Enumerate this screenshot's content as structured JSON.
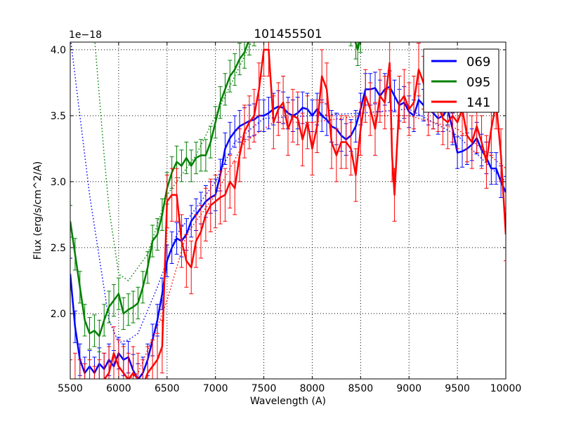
{
  "chart_data": {
    "type": "line",
    "title": "101455501",
    "xlabel": "Wavelength (A)",
    "ylabel": "Flux (erg/s/cm^2/A)",
    "offset_label": "1e−18",
    "xlim": [
      5500,
      10000
    ],
    "ylim": [
      1.505,
      4.058
    ],
    "xticks": [
      5500,
      6000,
      6500,
      7000,
      7500,
      8000,
      8500,
      9000,
      9500,
      10000
    ],
    "yticks": [
      2.0,
      2.5,
      3.0,
      3.5,
      4.0
    ],
    "ytick_labels": [
      "2.0",
      "2.5",
      "3.0",
      "3.5",
      "4.0"
    ],
    "grid": true,
    "legend_position": "top-right",
    "series": [
      {
        "name": "069",
        "color": "#0000ff",
        "err": 0.12,
        "x": [
          5500,
          5550,
          5600,
          5650,
          5700,
          5750,
          5800,
          5850,
          5900,
          5950,
          6000,
          6050,
          6100,
          6150,
          6200,
          6250,
          6300,
          6350,
          6400,
          6450,
          6500,
          6550,
          6600,
          6650,
          6700,
          6750,
          6800,
          6850,
          6900,
          6950,
          7000,
          7050,
          7100,
          7150,
          7200,
          7250,
          7300,
          7350,
          7400,
          7450,
          7500,
          7550,
          7600,
          7650,
          7700,
          7750,
          7800,
          7850,
          7900,
          7950,
          8000,
          8050,
          8100,
          8150,
          8200,
          8250,
          8300,
          8350,
          8400,
          8450,
          8500,
          8550,
          8600,
          8650,
          8700,
          8750,
          8800,
          8850,
          8900,
          8950,
          9000,
          9050,
          9100,
          9150,
          9200,
          9250,
          9300,
          9350,
          9400,
          9450,
          9500,
          9550,
          9600,
          9650,
          9700,
          9750,
          9800,
          9850,
          9900,
          9950,
          10000
        ],
        "y": [
          2.3,
          1.9,
          1.65,
          1.55,
          1.6,
          1.55,
          1.62,
          1.58,
          1.65,
          1.6,
          1.7,
          1.65,
          1.67,
          1.57,
          1.5,
          1.55,
          1.65,
          1.8,
          1.95,
          2.15,
          2.4,
          2.5,
          2.57,
          2.55,
          2.6,
          2.7,
          2.75,
          2.8,
          2.85,
          2.88,
          2.9,
          3.05,
          3.25,
          3.33,
          3.38,
          3.42,
          3.44,
          3.46,
          3.47,
          3.5,
          3.5,
          3.52,
          3.55,
          3.57,
          3.56,
          3.52,
          3.5,
          3.52,
          3.56,
          3.55,
          3.5,
          3.55,
          3.5,
          3.47,
          3.42,
          3.4,
          3.35,
          3.32,
          3.35,
          3.42,
          3.55,
          3.7,
          3.7,
          3.71,
          3.65,
          3.7,
          3.72,
          3.65,
          3.58,
          3.6,
          3.53,
          3.5,
          3.62,
          3.58,
          3.55,
          3.52,
          3.48,
          3.5,
          3.55,
          3.4,
          3.22,
          3.23,
          3.25,
          3.28,
          3.33,
          3.24,
          3.18,
          3.1,
          3.1,
          3.0,
          2.92
        ],
        "model_x": [
          5500,
          5700,
          5900,
          6000,
          6100,
          6200,
          6400,
          6600,
          6800,
          7000,
          7200,
          7500,
          8000,
          8500,
          9000,
          9500,
          10000
        ],
        "model_y": [
          4.1,
          2.9,
          1.95,
          1.78,
          1.8,
          1.85,
          2.2,
          2.6,
          2.8,
          3.0,
          3.3,
          3.48,
          3.5,
          3.52,
          3.55,
          3.35,
          3.0
        ]
      },
      {
        "name": "095",
        "color": "#008000",
        "err": 0.12,
        "x": [
          5500,
          5550,
          5600,
          5650,
          5700,
          5750,
          5800,
          5850,
          5900,
          5950,
          6000,
          6050,
          6100,
          6150,
          6200,
          6250,
          6300,
          6350,
          6400,
          6450,
          6500,
          6550,
          6600,
          6650,
          6700,
          6750,
          6800,
          6850,
          6900,
          6950,
          7000,
          7050,
          7100,
          7150,
          7200,
          7250,
          7300,
          7350,
          7400,
          7600,
          7800,
          8000,
          8200,
          8400,
          8450,
          8470,
          8500,
          8700,
          9000,
          9500,
          10000
        ],
        "y": [
          2.7,
          2.45,
          2.2,
          1.95,
          1.85,
          1.87,
          1.83,
          1.95,
          2.05,
          2.1,
          2.15,
          2.0,
          2.03,
          2.05,
          2.08,
          2.2,
          2.35,
          2.55,
          2.6,
          2.75,
          2.95,
          3.07,
          3.15,
          3.12,
          3.18,
          3.12,
          3.18,
          3.2,
          3.2,
          3.3,
          3.45,
          3.6,
          3.7,
          3.8,
          3.85,
          3.93,
          3.98,
          4.08,
          4.15,
          4.2,
          4.2,
          4.2,
          4.2,
          4.15,
          4.05,
          4.0,
          4.1,
          4.2,
          4.2,
          4.2,
          4.2
        ],
        "model_x": [
          5750,
          5850,
          5900,
          6000,
          6100,
          6300,
          6500,
          6800,
          7100,
          7300,
          7400
        ],
        "model_y": [
          4.1,
          3.2,
          2.8,
          2.3,
          2.25,
          2.45,
          2.9,
          3.2,
          3.65,
          3.95,
          4.1
        ]
      },
      {
        "name": "141",
        "color": "#ff0000",
        "err": 0.2,
        "x": [
          5500,
          5550,
          5600,
          5650,
          5700,
          5750,
          5800,
          5850,
          5900,
          5950,
          6000,
          6050,
          6100,
          6150,
          6200,
          6250,
          6300,
          6350,
          6400,
          6450,
          6500,
          6550,
          6600,
          6650,
          6700,
          6750,
          6800,
          6850,
          6900,
          6950,
          7000,
          7050,
          7100,
          7150,
          7200,
          7250,
          7300,
          7350,
          7400,
          7450,
          7500,
          7550,
          7600,
          7650,
          7700,
          7750,
          7800,
          7850,
          7900,
          7950,
          8000,
          8050,
          8100,
          8150,
          8200,
          8250,
          8300,
          8350,
          8400,
          8450,
          8500,
          8550,
          8600,
          8650,
          8700,
          8750,
          8800,
          8825,
          8850,
          8900,
          8950,
          9000,
          9050,
          9100,
          9150,
          9200,
          9250,
          9300,
          9350,
          9400,
          9450,
          9500,
          9550,
          9600,
          9650,
          9700,
          9750,
          9800,
          9850,
          9900,
          9950,
          10000
        ],
        "y": [
          1.45,
          1.5,
          1.45,
          1.42,
          1.45,
          1.4,
          1.45,
          1.5,
          1.55,
          1.7,
          1.6,
          1.55,
          1.5,
          1.55,
          1.5,
          1.45,
          1.55,
          1.6,
          1.65,
          1.75,
          2.85,
          2.9,
          2.9,
          2.55,
          2.4,
          2.35,
          2.55,
          2.62,
          2.75,
          2.82,
          2.85,
          2.88,
          2.9,
          3.0,
          2.95,
          3.2,
          3.38,
          3.45,
          3.5,
          3.7,
          4.0,
          4.0,
          3.45,
          3.55,
          3.6,
          3.4,
          3.5,
          3.48,
          3.32,
          3.45,
          3.25,
          3.42,
          3.8,
          3.7,
          3.3,
          3.2,
          3.3,
          3.3,
          3.25,
          3.05,
          3.4,
          3.65,
          3.55,
          3.4,
          3.65,
          3.6,
          3.9,
          3.2,
          2.9,
          3.6,
          3.65,
          3.55,
          3.6,
          3.85,
          3.75,
          3.55,
          3.6,
          3.58,
          3.48,
          3.45,
          3.5,
          3.45,
          3.55,
          3.35,
          3.3,
          3.42,
          3.3,
          3.15,
          3.4,
          3.6,
          3.2,
          2.6
        ],
        "model_x": [
          6100,
          6200,
          6400,
          6500,
          6700,
          7000,
          7300,
          7600,
          8000,
          8500,
          9000,
          9500,
          10000
        ],
        "model_y": [
          1.5,
          1.55,
          1.9,
          2.1,
          2.6,
          2.9,
          3.3,
          3.45,
          3.45,
          3.5,
          3.5,
          3.4,
          3.1
        ]
      }
    ]
  }
}
